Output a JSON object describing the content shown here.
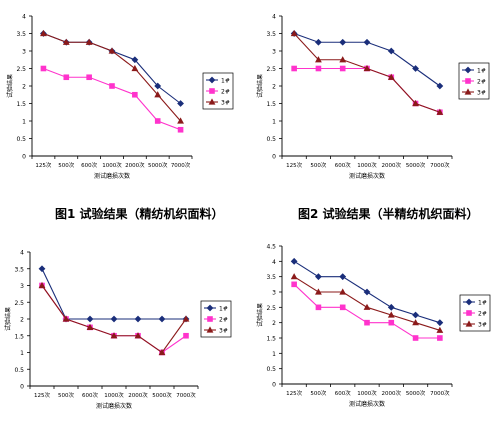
{
  "figure_captions": [
    "图1 试验结果（精纺机织面料）",
    "图2 试验结果（半精纺机织面料）"
  ],
  "return_mark": "↵",
  "colors": {
    "1": "#1a2e7a",
    "2": "#ff33cc",
    "3": "#8b1a1a"
  },
  "chart_data": [
    {
      "type": "line",
      "title": "",
      "ylabel": "试验结果",
      "xlabel": "测试磨损次数",
      "ylim": [
        0,
        4
      ],
      "yticks": [
        "0",
        "0.5",
        "1",
        "1.5",
        "2",
        "2.5",
        "3",
        "3.5",
        "4"
      ],
      "categories": [
        "125次",
        "500次",
        "600次",
        "1000次",
        "2000次",
        "5000次",
        "7000次"
      ],
      "legend_position": "right",
      "series": [
        {
          "name": "1#",
          "marker": "diamond",
          "values": [
            3.5,
            3.25,
            3.25,
            3.0,
            2.75,
            2.0,
            1.5
          ]
        },
        {
          "name": "2#",
          "marker": "square",
          "values": [
            2.5,
            2.25,
            2.25,
            2.0,
            1.75,
            1.0,
            0.75
          ]
        },
        {
          "name": "3#",
          "marker": "triangle",
          "values": [
            3.5,
            3.25,
            3.25,
            3.0,
            2.5,
            1.75,
            1.0
          ]
        }
      ]
    },
    {
      "type": "line",
      "title": "",
      "ylabel": "试验结果",
      "xlabel": "测试磨损次数",
      "ylim": [
        0,
        4
      ],
      "yticks": [
        "0",
        "0.5",
        "1",
        "1.5",
        "2",
        "2.5",
        "3",
        "3.5",
        "4"
      ],
      "categories": [
        "125次",
        "500次",
        "600次",
        "1000次",
        "2000次",
        "5000次",
        "7000次"
      ],
      "legend_position": "right",
      "series": [
        {
          "name": "1#",
          "marker": "diamond",
          "values": [
            3.5,
            3.25,
            3.25,
            3.25,
            3.0,
            2.5,
            2.0
          ]
        },
        {
          "name": "2#",
          "marker": "square",
          "values": [
            2.5,
            2.5,
            2.5,
            2.5,
            2.25,
            1.5,
            1.25
          ]
        },
        {
          "name": "3#",
          "marker": "triangle",
          "values": [
            3.5,
            2.75,
            2.75,
            2.5,
            2.25,
            1.5,
            1.25
          ]
        }
      ]
    },
    {
      "type": "line",
      "title": "",
      "ylabel": "试验结果",
      "xlabel": "测试磨损次数",
      "ylim": [
        0,
        4
      ],
      "yticks": [
        "0",
        "0.5",
        "1",
        "1.5",
        "2",
        "2.5",
        "3",
        "3.5",
        "4"
      ],
      "categories": [
        "125次",
        "500次",
        "600次",
        "1000次",
        "2000次",
        "5000次",
        "7000次"
      ],
      "legend_position": "right",
      "series": [
        {
          "name": "1#",
          "marker": "diamond",
          "values": [
            3.5,
            2.0,
            2.0,
            2.0,
            2.0,
            2.0,
            2.0
          ]
        },
        {
          "name": "2#",
          "marker": "square",
          "values": [
            3.0,
            2.0,
            1.75,
            1.5,
            1.5,
            1.0,
            1.5
          ]
        },
        {
          "name": "3#",
          "marker": "triangle",
          "values": [
            3.0,
            2.0,
            1.75,
            1.5,
            1.5,
            1.0,
            2.0
          ]
        }
      ]
    },
    {
      "type": "line",
      "title": "",
      "ylabel": "试验结果",
      "xlabel": "测试磨损次数",
      "ylim": [
        0,
        4.5
      ],
      "yticks": [
        "0",
        "0.5",
        "1",
        "1.5",
        "2",
        "2.5",
        "3",
        "3.5",
        "4",
        "4.5"
      ],
      "categories": [
        "125次",
        "500次",
        "600次",
        "1000次",
        "2000次",
        "5000次",
        "7000次"
      ],
      "legend_position": "right",
      "series": [
        {
          "name": "1#",
          "marker": "diamond",
          "values": [
            4.0,
            3.5,
            3.5,
            3.0,
            2.5,
            2.25,
            2.0
          ]
        },
        {
          "name": "2#",
          "marker": "square",
          "values": [
            3.25,
            2.5,
            2.5,
            2.0,
            2.0,
            1.5,
            1.5
          ]
        },
        {
          "name": "3#",
          "marker": "triangle",
          "values": [
            3.5,
            3.0,
            3.0,
            2.5,
            2.25,
            2.0,
            1.75
          ]
        }
      ]
    }
  ]
}
